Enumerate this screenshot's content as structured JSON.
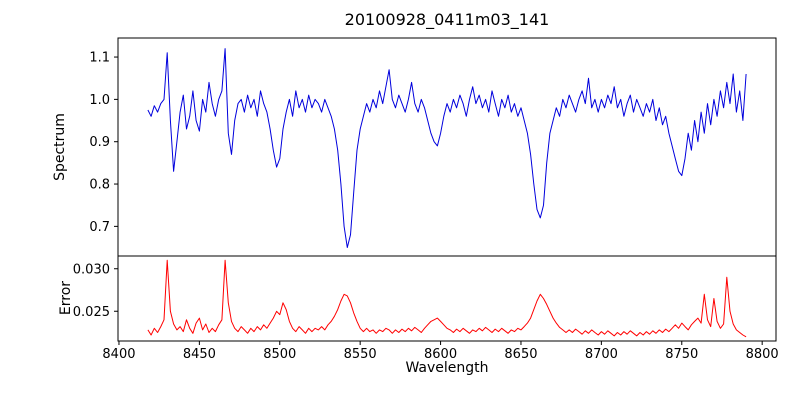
{
  "figure": {
    "background": "#ffffff"
  },
  "chart_data": {
    "type": "line",
    "title": "20100928_0411m03_141",
    "xlabel": "Wavelength",
    "xlim": [
      8399.4,
      8808.6
    ],
    "x_ticks": [
      8400,
      8450,
      8500,
      8550,
      8600,
      8650,
      8700,
      8750,
      8800
    ],
    "x_start": 8418,
    "x_step": 2,
    "legend": "none",
    "grid": false,
    "subplots": [
      {
        "name": "spectrum",
        "ylabel": "Spectrum",
        "color": "#0000dd",
        "ylim": [
          0.63,
          1.145
        ],
        "y_ticks": [
          0.7,
          0.8,
          0.9,
          1.0,
          1.1
        ],
        "y_tick_labels": [
          "0.7",
          "0.8",
          "0.9",
          "1.0",
          "1.1"
        ],
        "features": "absorption lines near 8434, 8498, 8542, 8598, 8662, 8750; sharp spikes near 8430 and 8466",
        "values": [
          0.975,
          0.96,
          0.985,
          0.97,
          0.99,
          1.0,
          1.11,
          0.95,
          0.83,
          0.9,
          0.97,
          1.01,
          0.93,
          0.96,
          1.02,
          0.95,
          0.925,
          1.0,
          0.97,
          1.04,
          0.99,
          0.96,
          1.0,
          1.02,
          1.12,
          0.92,
          0.87,
          0.95,
          0.99,
          1.0,
          0.97,
          1.01,
          0.98,
          1.0,
          0.96,
          1.02,
          0.99,
          0.97,
          0.93,
          0.88,
          0.84,
          0.86,
          0.93,
          0.97,
          1.0,
          0.96,
          1.02,
          0.98,
          1.0,
          0.97,
          1.01,
          0.98,
          1.0,
          0.99,
          0.97,
          1.0,
          0.98,
          0.96,
          0.93,
          0.88,
          0.8,
          0.7,
          0.65,
          0.68,
          0.78,
          0.88,
          0.93,
          0.96,
          0.99,
          0.97,
          1.0,
          0.98,
          1.02,
          0.99,
          1.03,
          1.07,
          1.0,
          0.98,
          1.01,
          0.99,
          0.97,
          1.0,
          1.04,
          0.99,
          0.97,
          1.0,
          0.98,
          0.95,
          0.92,
          0.9,
          0.89,
          0.92,
          0.96,
          0.99,
          0.97,
          1.0,
          0.98,
          1.01,
          0.99,
          0.96,
          1.0,
          1.03,
          0.99,
          1.01,
          0.98,
          1.0,
          0.97,
          1.02,
          0.99,
          0.96,
          1.0,
          0.98,
          1.01,
          0.97,
          0.99,
          0.96,
          0.98,
          0.95,
          0.92,
          0.87,
          0.8,
          0.74,
          0.72,
          0.75,
          0.85,
          0.92,
          0.95,
          0.98,
          0.96,
          1.0,
          0.98,
          1.01,
          0.99,
          0.97,
          1.0,
          1.02,
          0.99,
          1.05,
          0.98,
          1.0,
          0.97,
          1.0,
          0.98,
          1.01,
          0.99,
          1.03,
          0.98,
          1.0,
          0.96,
          0.99,
          1.01,
          0.97,
          1.0,
          0.98,
          0.96,
          0.99,
          0.97,
          1.0,
          0.95,
          0.98,
          0.94,
          0.96,
          0.92,
          0.89,
          0.86,
          0.83,
          0.82,
          0.86,
          0.92,
          0.88,
          0.95,
          0.9,
          0.97,
          0.92,
          0.99,
          0.94,
          1.0,
          0.96,
          1.02,
          0.98,
          1.04,
          0.99,
          1.06,
          0.97,
          1.02,
          0.95,
          1.06
        ]
      },
      {
        "name": "error",
        "ylabel": "Error",
        "color": "#ff0000",
        "ylim": [
          0.0215,
          0.0315
        ],
        "y_ticks": [
          0.025,
          0.03
        ],
        "y_tick_labels": [
          "0.025",
          "0.030"
        ],
        "features": "baseline ~0.0225 with spikes near 8430, 8466, 8502, 8540, 8662, 8764, 8778",
        "values": [
          0.0228,
          0.0222,
          0.023,
          0.0225,
          0.0232,
          0.024,
          0.031,
          0.025,
          0.0235,
          0.0228,
          0.0232,
          0.0226,
          0.024,
          0.023,
          0.0224,
          0.0236,
          0.0242,
          0.0228,
          0.0235,
          0.0225,
          0.023,
          0.0226,
          0.0234,
          0.024,
          0.031,
          0.026,
          0.0238,
          0.023,
          0.0226,
          0.0232,
          0.0228,
          0.0224,
          0.023,
          0.0226,
          0.0232,
          0.0228,
          0.0234,
          0.023,
          0.0236,
          0.0242,
          0.025,
          0.0246,
          0.026,
          0.0252,
          0.0238,
          0.023,
          0.0226,
          0.0232,
          0.0228,
          0.0224,
          0.023,
          0.0226,
          0.023,
          0.0228,
          0.0232,
          0.0228,
          0.0234,
          0.0238,
          0.0244,
          0.0252,
          0.0262,
          0.027,
          0.0268,
          0.026,
          0.0248,
          0.0238,
          0.023,
          0.0226,
          0.023,
          0.0226,
          0.0228,
          0.0224,
          0.0228,
          0.0226,
          0.023,
          0.0228,
          0.0224,
          0.0228,
          0.0225,
          0.0229,
          0.0226,
          0.023,
          0.0227,
          0.0231,
          0.0228,
          0.0225,
          0.023,
          0.0234,
          0.0238,
          0.024,
          0.0242,
          0.0238,
          0.0234,
          0.023,
          0.0228,
          0.0225,
          0.0229,
          0.0226,
          0.023,
          0.0227,
          0.0224,
          0.0228,
          0.0226,
          0.023,
          0.0227,
          0.0231,
          0.0228,
          0.0225,
          0.0229,
          0.0226,
          0.023,
          0.0227,
          0.0224,
          0.0228,
          0.0226,
          0.023,
          0.0228,
          0.0232,
          0.0236,
          0.0242,
          0.0252,
          0.0262,
          0.027,
          0.0265,
          0.0258,
          0.025,
          0.0242,
          0.0236,
          0.0231,
          0.0228,
          0.0225,
          0.0228,
          0.0225,
          0.0229,
          0.0226,
          0.0223,
          0.0227,
          0.0224,
          0.0228,
          0.0225,
          0.0222,
          0.0226,
          0.0223,
          0.0227,
          0.0224,
          0.0221,
          0.0225,
          0.0222,
          0.0226,
          0.0223,
          0.0227,
          0.0224,
          0.0221,
          0.0225,
          0.0222,
          0.0226,
          0.0223,
          0.0227,
          0.0224,
          0.0228,
          0.0225,
          0.0229,
          0.0226,
          0.023,
          0.0234,
          0.023,
          0.0236,
          0.0232,
          0.0228,
          0.0234,
          0.0238,
          0.0242,
          0.0236,
          0.027,
          0.024,
          0.0232,
          0.0265,
          0.0238,
          0.023,
          0.0235,
          0.029,
          0.025,
          0.0235,
          0.0228,
          0.0225,
          0.0222,
          0.022
        ]
      }
    ]
  }
}
